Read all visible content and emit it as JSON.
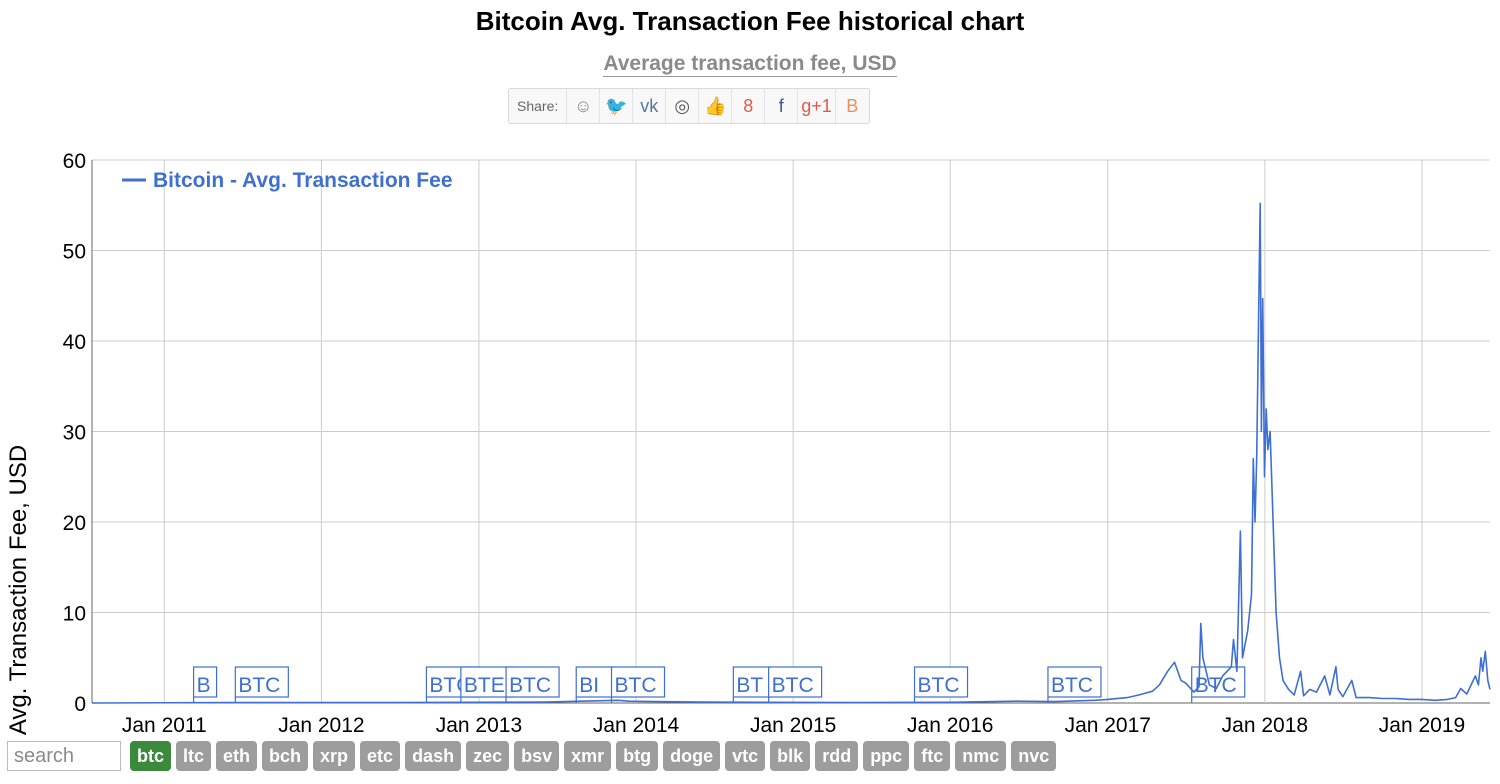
{
  "page": {
    "title": "Bitcoin Avg. Transaction Fee historical chart",
    "subtitle": "Average transaction fee, USD"
  },
  "share": {
    "label": "Share:",
    "buttons": [
      {
        "name": "reddit",
        "glyph": "☺",
        "color": "#888888"
      },
      {
        "name": "twitter",
        "glyph": "🐦",
        "color": "#4aa1ec"
      },
      {
        "name": "vk",
        "glyph": "vk",
        "color": "#54769b"
      },
      {
        "name": "weibo",
        "glyph": "◎",
        "color": "#555555"
      },
      {
        "name": "like",
        "glyph": "👍",
        "color": "#4f6fb5"
      },
      {
        "name": "google-plus",
        "glyph": "8",
        "color": "#e25a4e"
      },
      {
        "name": "facebook",
        "glyph": "f",
        "color": "#3b5998"
      },
      {
        "name": "google-plus-one",
        "glyph": "g+1",
        "color": "#e25a4e"
      },
      {
        "name": "blogger",
        "glyph": "B",
        "color": "#e8925a"
      }
    ]
  },
  "chart_data": {
    "type": "line",
    "title": "Bitcoin Avg. Transaction Fee historical chart",
    "subtitle": "Average transaction fee, USD",
    "ylabel": "Avg. Transaction Fee, USD",
    "xlabel": "",
    "ylim": [
      0,
      60
    ],
    "xlim": [
      "2010-07-17",
      "2019-06-08"
    ],
    "yticks": [
      0,
      10,
      20,
      30,
      40,
      50,
      60
    ],
    "xticks": [
      "2011-01-01",
      "2012-01-01",
      "2013-01-01",
      "2014-01-01",
      "2015-01-01",
      "2016-01-01",
      "2017-01-01",
      "2018-01-01",
      "2019-01-01"
    ],
    "xtick_labels": [
      "Jan 2011",
      "Jan 2012",
      "Jan 2013",
      "Jan 2014",
      "Jan 2015",
      "Jan 2016",
      "Jan 2017",
      "Jan 2018",
      "Jan 2019"
    ],
    "grid": true,
    "legend_position": "top-left",
    "color": "#3f6fd0",
    "series": [
      {
        "name": "Bitcoin - Avg. Transaction Fee",
        "points": [
          [
            "2010-07-17",
            0
          ],
          [
            "2011-06-01",
            0.05
          ],
          [
            "2012-06-01",
            0.05
          ],
          [
            "2013-06-01",
            0.1
          ],
          [
            "2013-11-20",
            0.3
          ],
          [
            "2013-12-15",
            0.2
          ],
          [
            "2014-06-01",
            0.1
          ],
          [
            "2015-06-01",
            0.05
          ],
          [
            "2016-01-01",
            0.08
          ],
          [
            "2016-06-01",
            0.2
          ],
          [
            "2016-09-01",
            0.15
          ],
          [
            "2016-12-01",
            0.3
          ],
          [
            "2017-01-01",
            0.4
          ],
          [
            "2017-02-15",
            0.6
          ],
          [
            "2017-03-15",
            0.9
          ],
          [
            "2017-04-15",
            1.3
          ],
          [
            "2017-05-01",
            2.0
          ],
          [
            "2017-05-20",
            3.5
          ],
          [
            "2017-06-05",
            4.5
          ],
          [
            "2017-06-20",
            2.5
          ],
          [
            "2017-07-01",
            2.2
          ],
          [
            "2017-07-20",
            1.2
          ],
          [
            "2017-08-01",
            1.8
          ],
          [
            "2017-08-05",
            8.8
          ],
          [
            "2017-08-10",
            5.0
          ],
          [
            "2017-08-25",
            2.0
          ],
          [
            "2017-09-10",
            1.6
          ],
          [
            "2017-09-25",
            3.0
          ],
          [
            "2017-10-15",
            4.0
          ],
          [
            "2017-10-20",
            7.0
          ],
          [
            "2017-10-28",
            3.5
          ],
          [
            "2017-11-05",
            19.0
          ],
          [
            "2017-11-10",
            5.0
          ],
          [
            "2017-11-22",
            8.0
          ],
          [
            "2017-12-01",
            12.0
          ],
          [
            "2017-12-05",
            27.0
          ],
          [
            "2017-12-09",
            20.0
          ],
          [
            "2017-12-13",
            27.0
          ],
          [
            "2017-12-18",
            45.0
          ],
          [
            "2017-12-21",
            55.2
          ],
          [
            "2017-12-24",
            30.0
          ],
          [
            "2017-12-27",
            44.7
          ],
          [
            "2017-12-31",
            25.0
          ],
          [
            "2018-01-04",
            32.5
          ],
          [
            "2018-01-08",
            28.0
          ],
          [
            "2018-01-13",
            30.0
          ],
          [
            "2018-01-20",
            20.0
          ],
          [
            "2018-01-27",
            10.0
          ],
          [
            "2018-02-04",
            5.0
          ],
          [
            "2018-02-12",
            2.5
          ],
          [
            "2018-02-25",
            1.5
          ],
          [
            "2018-03-10",
            0.9
          ],
          [
            "2018-03-25",
            3.5
          ],
          [
            "2018-04-01",
            0.8
          ],
          [
            "2018-04-15",
            1.5
          ],
          [
            "2018-05-01",
            1.2
          ],
          [
            "2018-05-20",
            3.0
          ],
          [
            "2018-06-01",
            0.9
          ],
          [
            "2018-06-15",
            4.0
          ],
          [
            "2018-06-20",
            1.5
          ],
          [
            "2018-07-01",
            0.7
          ],
          [
            "2018-07-22",
            2.5
          ],
          [
            "2018-08-01",
            0.6
          ],
          [
            "2018-09-01",
            0.6
          ],
          [
            "2018-10-01",
            0.5
          ],
          [
            "2018-11-01",
            0.5
          ],
          [
            "2018-12-01",
            0.4
          ],
          [
            "2019-01-01",
            0.4
          ],
          [
            "2019-02-01",
            0.3
          ],
          [
            "2019-03-01",
            0.4
          ],
          [
            "2019-03-20",
            0.6
          ],
          [
            "2019-04-01",
            1.6
          ],
          [
            "2019-04-15",
            1.0
          ],
          [
            "2019-04-25",
            2.0
          ],
          [
            "2019-05-05",
            3.0
          ],
          [
            "2019-05-12",
            2.0
          ],
          [
            "2019-05-18",
            5.0
          ],
          [
            "2019-05-22",
            3.5
          ],
          [
            "2019-05-28",
            5.7
          ],
          [
            "2019-06-03",
            2.5
          ],
          [
            "2019-06-08",
            1.5
          ]
        ]
      }
    ],
    "annotations": [
      {
        "date": "2011-03-10",
        "label": "B"
      },
      {
        "date": "2011-06-15",
        "label": "BTC"
      },
      {
        "date": "2012-09-01",
        "label": "BTC"
      },
      {
        "date": "2012-11-20",
        "label": "BTE"
      },
      {
        "date": "2013-03-05",
        "label": "BTC"
      },
      {
        "date": "2013-08-15",
        "label": "BI"
      },
      {
        "date": "2013-11-05",
        "label": "BTC"
      },
      {
        "date": "2014-08-15",
        "label": "BT"
      },
      {
        "date": "2014-11-05",
        "label": "BTC"
      },
      {
        "date": "2015-10-10",
        "label": "BTC"
      },
      {
        "date": "2016-08-15",
        "label": "BTC"
      },
      {
        "date": "2017-07-15",
        "label": "BTC"
      }
    ]
  },
  "search": {
    "placeholder": "search"
  },
  "coins": [
    {
      "label": "btc",
      "active": true
    },
    {
      "label": "ltc",
      "active": false
    },
    {
      "label": "eth",
      "active": false
    },
    {
      "label": "bch",
      "active": false
    },
    {
      "label": "xrp",
      "active": false
    },
    {
      "label": "etc",
      "active": false
    },
    {
      "label": "dash",
      "active": false
    },
    {
      "label": "zec",
      "active": false
    },
    {
      "label": "bsv",
      "active": false
    },
    {
      "label": "xmr",
      "active": false
    },
    {
      "label": "btg",
      "active": false
    },
    {
      "label": "doge",
      "active": false
    },
    {
      "label": "vtc",
      "active": false
    },
    {
      "label": "blk",
      "active": false
    },
    {
      "label": "rdd",
      "active": false
    },
    {
      "label": "ppc",
      "active": false
    },
    {
      "label": "ftc",
      "active": false
    },
    {
      "label": "nmc",
      "active": false
    },
    {
      "label": "nvc",
      "active": false
    }
  ]
}
